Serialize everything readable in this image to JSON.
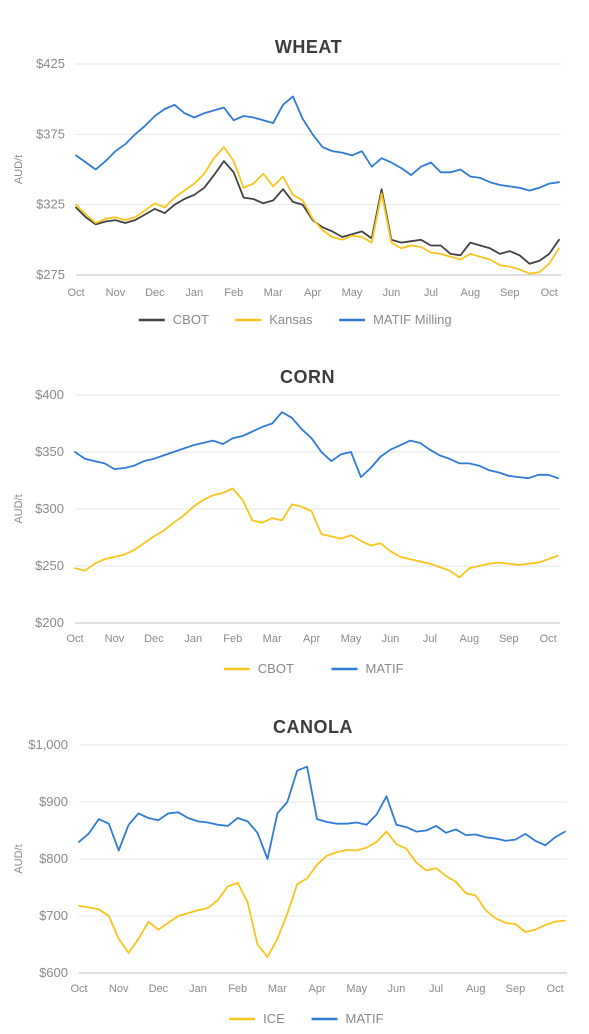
{
  "chart_data": [
    {
      "type": "line",
      "title": "WHEAT",
      "ylabel": "AUD/t",
      "ylim": [
        275,
        425
      ],
      "yticks": [
        275,
        325,
        375,
        425
      ],
      "ytick_labels": [
        "$275",
        "$325",
        "$375",
        "$425"
      ],
      "x_labels": [
        "Oct",
        "Nov",
        "Dec",
        "Jan",
        "Feb",
        "Mar",
        "Apr",
        "May",
        "Jun",
        "Jul",
        "Aug",
        "Sep",
        "Oct"
      ],
      "x_range": [
        0,
        12.3
      ],
      "grid": true,
      "legend_position": "bottom",
      "series": [
        {
          "name": "CBOT",
          "color": "#424242",
          "x": [
            0,
            0.25,
            0.5,
            0.75,
            1,
            1.25,
            1.5,
            1.75,
            2,
            2.25,
            2.5,
            2.75,
            3,
            3.25,
            3.5,
            3.75,
            4,
            4.25,
            4.5,
            4.75,
            5,
            5.25,
            5.5,
            5.75,
            6,
            6.25,
            6.5,
            6.75,
            7,
            7.25,
            7.5,
            7.75,
            8,
            8.25,
            8.5,
            8.75,
            9,
            9.25,
            9.5,
            9.75,
            10,
            10.25,
            10.5,
            10.75,
            11,
            11.25,
            11.5,
            11.75,
            12,
            12.25
          ],
          "values": [
            323,
            316,
            311,
            313,
            314,
            312,
            314,
            318,
            322,
            319,
            325,
            329,
            332,
            337,
            346,
            356,
            348,
            330,
            329,
            326,
            328,
            336,
            327,
            325,
            314,
            309,
            306,
            302,
            304,
            306,
            301,
            336,
            300,
            298,
            299,
            300,
            296,
            296,
            290,
            289,
            298,
            296,
            294,
            290,
            292,
            289,
            283,
            285,
            290,
            300
          ]
        },
        {
          "name": "Kansas",
          "color": "#f8c51c",
          "x": [
            0,
            0.25,
            0.5,
            0.75,
            1,
            1.25,
            1.5,
            1.75,
            2,
            2.25,
            2.5,
            2.75,
            3,
            3.25,
            3.5,
            3.75,
            4,
            4.25,
            4.5,
            4.75,
            5,
            5.25,
            5.5,
            5.75,
            6,
            6.25,
            6.5,
            6.75,
            7,
            7.25,
            7.5,
            7.75,
            8,
            8.25,
            8.5,
            8.75,
            9,
            9.25,
            9.5,
            9.75,
            10,
            10.25,
            10.5,
            10.75,
            11,
            11.25,
            11.5,
            11.75,
            12,
            12.25
          ],
          "values": [
            325,
            318,
            312,
            315,
            316,
            314,
            316,
            321,
            326,
            323,
            330,
            335,
            340,
            347,
            358,
            366,
            356,
            337,
            340,
            347,
            338,
            345,
            332,
            328,
            315,
            307,
            302,
            300,
            303,
            302,
            298,
            333,
            298,
            294,
            296,
            295,
            291,
            290,
            288,
            286,
            290,
            288,
            286,
            282,
            281,
            279,
            276,
            277,
            283,
            294
          ]
        },
        {
          "name": "MATIF Milling",
          "color": "#2f7bd6",
          "x": [
            0,
            0.25,
            0.5,
            0.75,
            1,
            1.25,
            1.5,
            1.75,
            2,
            2.25,
            2.5,
            2.75,
            3,
            3.25,
            3.5,
            3.75,
            4,
            4.25,
            4.5,
            4.75,
            5,
            5.25,
            5.5,
            5.75,
            6,
            6.25,
            6.5,
            6.75,
            7,
            7.25,
            7.5,
            7.75,
            8,
            8.25,
            8.5,
            8.75,
            9,
            9.25,
            9.5,
            9.75,
            10,
            10.25,
            10.5,
            10.75,
            11,
            11.25,
            11.5,
            11.75,
            12,
            12.25
          ],
          "values": [
            360,
            355,
            350,
            356,
            363,
            368,
            375,
            381,
            388,
            393,
            396,
            390,
            387,
            390,
            392,
            394,
            385,
            388,
            387,
            385,
            383,
            396,
            402,
            386,
            375,
            366,
            363,
            362,
            360,
            363,
            352,
            358,
            355,
            351,
            346,
            352,
            355,
            348,
            348,
            350,
            345,
            344,
            341,
            339,
            338,
            337,
            335,
            337,
            340,
            341
          ]
        }
      ]
    },
    {
      "type": "line",
      "title": "CORN",
      "ylabel": "AUD/t",
      "ylim": [
        200,
        400
      ],
      "yticks": [
        200,
        250,
        300,
        350,
        400
      ],
      "ytick_labels": [
        "$200",
        "$250",
        "$300",
        "$350",
        "$400"
      ],
      "x_labels": [
        "Oct",
        "Nov",
        "Dec",
        "Jan",
        "Feb",
        "Mar",
        "Apr",
        "May",
        "Jun",
        "Jul",
        "Aug",
        "Sep",
        "Oct"
      ],
      "x_range": [
        0,
        12.3
      ],
      "grid": true,
      "legend_position": "bottom",
      "series": [
        {
          "name": "CBOT",
          "color": "#f8c51c",
          "x": [
            0,
            0.25,
            0.5,
            0.75,
            1,
            1.25,
            1.5,
            1.75,
            2,
            2.25,
            2.5,
            2.75,
            3,
            3.25,
            3.5,
            3.75,
            4,
            4.25,
            4.5,
            4.75,
            5,
            5.25,
            5.5,
            5.75,
            6,
            6.25,
            6.5,
            6.75,
            7,
            7.25,
            7.5,
            7.75,
            8,
            8.25,
            8.5,
            8.75,
            9,
            9.25,
            9.5,
            9.75,
            10,
            10.25,
            10.5,
            10.75,
            11,
            11.25,
            11.5,
            11.75,
            12,
            12.25
          ],
          "values": [
            248,
            246,
            252,
            256,
            258,
            260,
            264,
            270,
            276,
            281,
            288,
            294,
            302,
            308,
            312,
            314,
            318,
            308,
            290,
            288,
            292,
            290,
            304,
            302,
            298,
            278,
            276,
            274,
            277,
            272,
            268,
            270,
            263,
            258,
            256,
            254,
            252,
            249,
            246,
            240,
            248,
            250,
            252,
            253,
            252,
            251,
            252,
            253,
            256,
            259
          ]
        },
        {
          "name": "MATIF",
          "color": "#2f7bd6",
          "x": [
            0,
            0.25,
            0.5,
            0.75,
            1,
            1.25,
            1.5,
            1.75,
            2,
            2.25,
            2.5,
            2.75,
            3,
            3.25,
            3.5,
            3.75,
            4,
            4.25,
            4.5,
            4.75,
            5,
            5.25,
            5.5,
            5.75,
            6,
            6.25,
            6.5,
            6.75,
            7,
            7.25,
            7.5,
            7.75,
            8,
            8.25,
            8.5,
            8.75,
            9,
            9.25,
            9.5,
            9.75,
            10,
            10.25,
            10.5,
            10.75,
            11,
            11.25,
            11.5,
            11.75,
            12,
            12.25
          ],
          "values": [
            350,
            344,
            342,
            340,
            335,
            336,
            338,
            342,
            344,
            347,
            350,
            353,
            356,
            358,
            360,
            357,
            362,
            364,
            368,
            372,
            375,
            385,
            380,
            370,
            362,
            350,
            342,
            348,
            350,
            328,
            336,
            346,
            352,
            356,
            360,
            358,
            352,
            347,
            344,
            340,
            340,
            338,
            334,
            332,
            329,
            328,
            327,
            330,
            330,
            327
          ]
        }
      ]
    },
    {
      "type": "line",
      "title": "CANOLA",
      "ylabel": "AUD/t",
      "ylim": [
        600,
        1000
      ],
      "yticks": [
        600,
        700,
        800,
        900,
        1000
      ],
      "ytick_labels": [
        "$600",
        "$700",
        "$800",
        "$900",
        "$1,000"
      ],
      "x_labels": [
        "Oct",
        "Nov",
        "Dec",
        "Jan",
        "Feb",
        "Mar",
        "Apr",
        "May",
        "Jun",
        "Jul",
        "Aug",
        "Sep",
        "Oct"
      ],
      "x_range": [
        0,
        12.3
      ],
      "grid": true,
      "legend_position": "bottom",
      "series": [
        {
          "name": "ICE",
          "color": "#f8c51c",
          "x": [
            0,
            0.25,
            0.5,
            0.75,
            1,
            1.25,
            1.5,
            1.75,
            2,
            2.25,
            2.5,
            2.75,
            3,
            3.25,
            3.5,
            3.75,
            4,
            4.25,
            4.5,
            4.75,
            5,
            5.25,
            5.5,
            5.75,
            6,
            6.25,
            6.5,
            6.75,
            7,
            7.25,
            7.5,
            7.75,
            8,
            8.25,
            8.5,
            8.75,
            9,
            9.25,
            9.5,
            9.75,
            10,
            10.25,
            10.5,
            10.75,
            11,
            11.25,
            11.5,
            11.75,
            12,
            12.25
          ],
          "values": [
            718,
            715,
            712,
            700,
            660,
            635,
            660,
            690,
            676,
            688,
            700,
            705,
            710,
            714,
            728,
            752,
            758,
            724,
            650,
            628,
            660,
            704,
            756,
            766,
            790,
            806,
            812,
            816,
            815,
            820,
            830,
            848,
            826,
            818,
            794,
            780,
            784,
            770,
            760,
            740,
            736,
            710,
            696,
            688,
            686,
            672,
            676,
            684,
            690,
            692
          ]
        },
        {
          "name": "MATIF",
          "color": "#2f7bd6",
          "x": [
            0,
            0.25,
            0.5,
            0.75,
            1,
            1.25,
            1.5,
            1.75,
            2,
            2.25,
            2.5,
            2.75,
            3,
            3.25,
            3.5,
            3.75,
            4,
            4.25,
            4.5,
            4.75,
            5,
            5.25,
            5.5,
            5.75,
            6,
            6.25,
            6.5,
            6.75,
            7,
            7.25,
            7.5,
            7.75,
            8,
            8.25,
            8.5,
            8.75,
            9,
            9.25,
            9.5,
            9.75,
            10,
            10.25,
            10.5,
            10.75,
            11,
            11.25,
            11.5,
            11.75,
            12,
            12.25
          ],
          "values": [
            830,
            845,
            870,
            862,
            815,
            860,
            880,
            872,
            868,
            880,
            882,
            872,
            866,
            864,
            860,
            858,
            872,
            866,
            846,
            800,
            880,
            900,
            955,
            962,
            870,
            865,
            862,
            862,
            864,
            860,
            878,
            910,
            860,
            856,
            848,
            850,
            858,
            846,
            852,
            842,
            843,
            838,
            836,
            832,
            834,
            844,
            832,
            824,
            838,
            848
          ]
        }
      ]
    }
  ]
}
